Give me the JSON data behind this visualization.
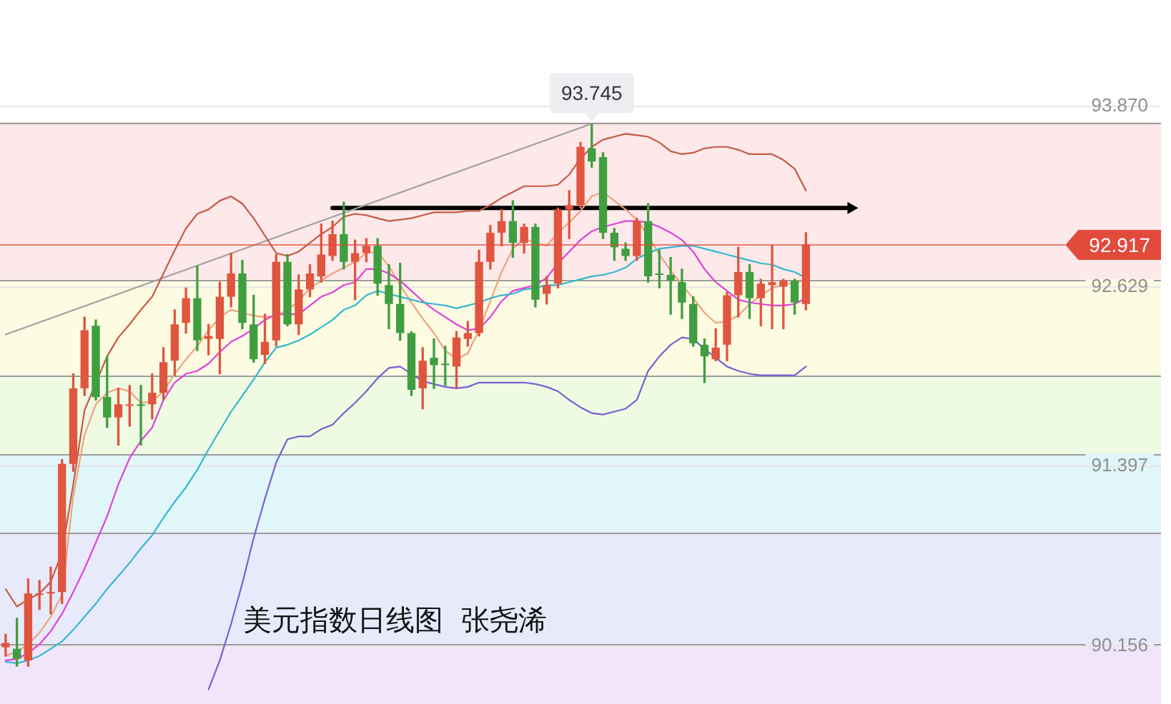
{
  "chart_data": {
    "type": "candlestick",
    "title": "美元指数日线图  张尧浠",
    "categories": [
      null,
      null,
      null,
      null,
      null,
      null,
      null,
      null,
      null,
      null,
      null,
      null,
      null,
      null,
      null,
      null,
      null,
      null,
      null,
      null,
      null,
      null,
      null,
      null,
      null,
      null,
      null,
      null,
      null,
      null,
      null,
      null,
      null,
      null,
      null,
      null,
      null,
      null,
      null,
      null,
      null,
      null,
      null,
      null,
      null,
      null,
      null,
      null,
      null,
      null,
      null,
      null,
      null,
      null,
      null,
      null,
      null,
      null,
      null,
      null,
      null,
      null,
      null,
      null,
      null,
      null,
      null,
      null,
      null,
      null,
      null,
      null,
      null,
      null,
      null,
      null,
      null,
      null,
      null,
      null,
      null,
      null,
      null,
      null,
      null,
      null,
      null,
      null,
      null,
      null,
      null,
      null,
      null,
      null,
      null,
      null,
      null,
      null,
      null,
      null,
      null,
      null,
      null
    ],
    "ohlc": [
      [
        90.15,
        90.24,
        90.09,
        90.18
      ],
      [
        90.14,
        90.35,
        90.02,
        90.07
      ],
      [
        90.06,
        90.62,
        90.02,
        90.52
      ],
      [
        90.51,
        90.61,
        90.41,
        90.52
      ],
      [
        90.52,
        90.7,
        90.38,
        90.53
      ],
      [
        90.53,
        91.44,
        90.45,
        91.41
      ],
      [
        91.41,
        92.03,
        91.36,
        91.93
      ],
      [
        91.93,
        92.42,
        91.88,
        92.33
      ],
      [
        92.36,
        92.4,
        91.85,
        91.87
      ],
      [
        91.87,
        92.15,
        91.66,
        91.73
      ],
      [
        91.73,
        91.93,
        91.54,
        91.82
      ],
      [
        91.81,
        91.95,
        91.67,
        91.82
      ],
      [
        91.82,
        91.95,
        91.54,
        91.81
      ],
      [
        91.82,
        92.03,
        91.72,
        91.9
      ],
      [
        91.9,
        92.21,
        91.85,
        92.11
      ],
      [
        92.12,
        92.47,
        92.02,
        92.37
      ],
      [
        92.38,
        92.62,
        92.31,
        92.55
      ],
      [
        92.55,
        92.77,
        92.19,
        92.26
      ],
      [
        92.27,
        92.37,
        92.16,
        92.29
      ],
      [
        92.27,
        92.66,
        92.03,
        92.56
      ],
      [
        92.56,
        92.86,
        92.49,
        92.72
      ],
      [
        92.72,
        92.81,
        92.34,
        92.38
      ],
      [
        92.37,
        92.57,
        92.11,
        92.13
      ],
      [
        92.16,
        92.44,
        92.1,
        92.25
      ],
      [
        92.26,
        92.85,
        92.22,
        92.8
      ],
      [
        92.8,
        92.85,
        92.36,
        92.37
      ],
      [
        92.37,
        92.71,
        92.3,
        92.61
      ],
      [
        92.61,
        92.78,
        92.56,
        92.72
      ],
      [
        92.7,
        93.06,
        92.66,
        92.85
      ],
      [
        92.84,
        93.08,
        92.81,
        92.99
      ],
      [
        92.99,
        93.21,
        92.75,
        92.8
      ],
      [
        92.8,
        92.95,
        92.54,
        92.86
      ],
      [
        92.86,
        92.96,
        92.8,
        92.91
      ],
      [
        92.91,
        92.96,
        92.57,
        92.65
      ],
      [
        92.64,
        92.78,
        92.34,
        92.51
      ],
      [
        92.51,
        92.79,
        92.26,
        92.31
      ],
      [
        92.31,
        92.32,
        91.88,
        91.92
      ],
      [
        91.93,
        92.21,
        91.79,
        92.12
      ],
      [
        92.14,
        92.27,
        91.93,
        92.09
      ],
      [
        92.1,
        92.22,
        91.95,
        92.09
      ],
      [
        92.08,
        92.32,
        91.93,
        92.28
      ],
      [
        92.27,
        92.39,
        92.22,
        92.31
      ],
      [
        92.31,
        92.88,
        92.29,
        92.8
      ],
      [
        92.8,
        93.05,
        92.75,
        93.0
      ],
      [
        93.0,
        93.16,
        92.91,
        93.08
      ],
      [
        93.08,
        93.22,
        92.83,
        92.93
      ],
      [
        92.93,
        93.06,
        92.86,
        93.04
      ],
      [
        93.04,
        93.06,
        92.49,
        92.54
      ],
      [
        92.58,
        92.7,
        92.51,
        92.64
      ],
      [
        92.65,
        93.17,
        92.62,
        93.16
      ],
      [
        93.16,
        93.29,
        92.96,
        93.19
      ],
      [
        93.19,
        93.62,
        93.17,
        93.59
      ],
      [
        93.58,
        93.745,
        93.45,
        93.49
      ],
      [
        93.52,
        93.55,
        92.96,
        93.0
      ],
      [
        93.0,
        93.03,
        92.81,
        92.9
      ],
      [
        92.89,
        92.93,
        92.81,
        92.84
      ],
      [
        92.84,
        93.1,
        92.81,
        93.08
      ],
      [
        93.08,
        93.2,
        92.66,
        92.7
      ],
      [
        92.72,
        92.88,
        92.62,
        92.71
      ],
      [
        92.71,
        92.83,
        92.44,
        92.67
      ],
      [
        92.66,
        92.75,
        92.41,
        92.52
      ],
      [
        92.51,
        92.56,
        92.22,
        92.24
      ],
      [
        92.23,
        92.27,
        91.97,
        92.15
      ],
      [
        92.13,
        92.34,
        92.12,
        92.21
      ],
      [
        92.23,
        92.59,
        92.12,
        92.57
      ],
      [
        92.57,
        92.9,
        92.42,
        92.73
      ],
      [
        92.73,
        92.78,
        92.41,
        92.55
      ],
      [
        92.55,
        92.68,
        92.36,
        92.65
      ],
      [
        92.64,
        92.91,
        92.34,
        92.66
      ],
      [
        92.63,
        92.68,
        92.34,
        92.67
      ],
      [
        92.67,
        92.68,
        92.44,
        92.52
      ],
      [
        92.51,
        93.0,
        92.47,
        92.917
      ],
      null,
      null,
      null,
      null,
      null,
      null,
      null,
      null,
      null,
      null,
      null,
      null,
      null,
      null,
      null,
      null,
      null,
      null,
      null,
      null,
      null,
      null,
      null,
      null,
      null,
      null,
      null,
      null,
      null,
      null,
      null
    ],
    "colors": [
      "#e0553f",
      "#3f9e3f",
      "#e0553f",
      "#e0553f",
      "#e0553f",
      "#e0553f",
      "#e0553f",
      "#e0553f",
      "#3f9e3f",
      "#3f9e3f",
      "#e0553f",
      "#e0553f",
      "#3f9e3f",
      "#e0553f",
      "#e0553f",
      "#e0553f",
      "#e0553f",
      "#3f9e3f",
      "#e0553f",
      "#e0553f",
      "#e0553f",
      "#3f9e3f",
      "#3f9e3f",
      "#e0553f",
      "#e0553f",
      "#3f9e3f",
      "#e0553f",
      "#e0553f",
      "#e0553f",
      "#e0553f",
      "#3f9e3f",
      "#e0553f",
      "#e0553f",
      "#3f9e3f",
      "#3f9e3f",
      "#3f9e3f",
      "#3f9e3f",
      "#e0553f",
      "#3f9e3f",
      "#3f9e3f",
      "#e0553f",
      "#e0553f",
      "#e0553f",
      "#e0553f",
      "#e0553f",
      "#3f9e3f",
      "#e0553f",
      "#3f9e3f",
      "#e0553f",
      "#e0553f",
      "#e0553f",
      "#e0553f",
      "#3f9e3f",
      "#3f9e3f",
      "#3f9e3f",
      "#3f9e3f",
      "#e0553f",
      "#3f9e3f",
      "#3f9e3f",
      "#3f9e3f",
      "#3f9e3f",
      "#3f9e3f",
      "#3f9e3f",
      "#e0553f",
      "#e0553f",
      "#e0553f",
      "#3f9e3f",
      "#e0553f",
      "#e0553f",
      "#e0553f",
      "#3f9e3f",
      "#e0553f",
      null,
      null,
      null,
      null,
      null,
      null,
      null,
      null,
      null,
      null,
      null,
      null,
      null,
      null,
      null,
      null,
      null,
      null,
      null,
      null,
      null,
      null,
      null,
      null,
      null,
      null,
      null,
      null,
      null,
      null,
      null
    ],
    "series": [
      {
        "type": "line",
        "color": "#c65a45",
        "values": [
          90.55,
          90.43,
          90.48,
          90.52,
          90.6,
          90.8,
          91.27,
          91.78,
          null,
          92.15,
          92.28,
          92.37,
          92.47,
          92.56,
          92.72,
          92.88,
          93.03,
          93.13,
          93.16,
          93.22,
          93.25,
          93.2,
          93.1,
          92.98,
          92.86,
          92.84,
          92.87,
          92.93,
          92.99,
          93.04,
          93.11,
          93.13,
          93.12,
          93.1,
          93.08,
          93.09,
          93.1,
          93.12,
          93.14,
          93.14,
          93.14,
          93.15,
          93.15,
          93.19,
          93.24,
          93.28,
          93.32,
          93.32,
          93.32,
          93.33,
          93.4,
          93.51,
          93.59,
          93.64,
          93.66,
          93.68,
          93.67,
          93.66,
          93.62,
          93.56,
          93.54,
          93.55,
          93.58,
          93.59,
          93.59,
          93.57,
          93.54,
          93.54,
          93.54,
          93.5,
          93.44,
          93.29,
          null,
          null,
          null,
          null,
          null,
          null,
          null,
          null,
          null,
          null,
          null,
          null,
          null,
          null,
          null,
          null,
          null,
          null,
          null,
          null,
          null,
          null,
          null,
          null,
          null,
          null,
          null,
          null,
          null,
          null,
          null
        ]
      },
      {
        "type": "line",
        "color": "#7a5fd1",
        "values": [
          null,
          null,
          null,
          null,
          null,
          null,
          null,
          null,
          null,
          null,
          null,
          null,
          null,
          null,
          null,
          null,
          null,
          null,
          89.86,
          90.06,
          90.31,
          90.59,
          90.9,
          91.17,
          91.42,
          91.58,
          91.6,
          91.6,
          91.65,
          91.68,
          91.76,
          91.83,
          91.91,
          92.0,
          92.07,
          92.08,
          92.03,
          91.98,
          91.96,
          91.94,
          91.93,
          91.94,
          91.97,
          91.97,
          91.97,
          91.97,
          91.97,
          91.96,
          91.94,
          91.91,
          91.85,
          91.8,
          91.76,
          91.75,
          91.77,
          91.79,
          91.85,
          92.05,
          92.15,
          92.23,
          92.28,
          92.27,
          92.2,
          92.14,
          92.08,
          92.05,
          92.03,
          92.02,
          92.02,
          92.02,
          92.02,
          92.08,
          null,
          null,
          null,
          null,
          null,
          null,
          null,
          null,
          null,
          null,
          null,
          null,
          null,
          null,
          null,
          null,
          null,
          null,
          null,
          null,
          null,
          null,
          null,
          null,
          null,
          null,
          null,
          null,
          null,
          null,
          null
        ]
      },
      {
        "type": "line",
        "color": "#35b6cf",
        "values": [
          90.05,
          90.04,
          90.06,
          90.09,
          90.14,
          90.19,
          90.27,
          90.36,
          90.45,
          90.55,
          90.64,
          90.73,
          90.83,
          90.92,
          91.04,
          91.15,
          91.25,
          91.37,
          91.51,
          91.64,
          91.77,
          91.88,
          91.99,
          92.11,
          92.21,
          92.23,
          92.26,
          92.3,
          92.35,
          92.4,
          92.47,
          92.5,
          92.57,
          92.6,
          92.58,
          92.56,
          92.54,
          92.52,
          92.51,
          92.5,
          92.48,
          92.5,
          92.52,
          92.55,
          92.57,
          92.58,
          92.61,
          92.62,
          92.64,
          92.64,
          92.66,
          92.68,
          92.7,
          92.71,
          92.73,
          92.76,
          92.82,
          92.86,
          92.89,
          92.9,
          92.91,
          92.91,
          92.89,
          92.87,
          92.85,
          92.83,
          92.81,
          92.79,
          92.78,
          92.75,
          92.73,
          92.69,
          null,
          null,
          null,
          null,
          null,
          null,
          null,
          null,
          null,
          null,
          null,
          null,
          null,
          null,
          null,
          null,
          null,
          null,
          null,
          null,
          null,
          null,
          null,
          null,
          null,
          null,
          null,
          null,
          null,
          null,
          null
        ]
      },
      {
        "type": "line",
        "color": "#e040dc",
        "values": [
          90.06,
          90.07,
          90.11,
          90.17,
          90.26,
          90.38,
          90.53,
          90.69,
          90.87,
          91.05,
          91.27,
          91.45,
          91.57,
          91.66,
          91.85,
          91.97,
          92.03,
          92.05,
          92.1,
          92.18,
          92.25,
          92.29,
          92.34,
          92.4,
          92.44,
          92.44,
          92.44,
          92.5,
          92.56,
          92.59,
          92.64,
          92.66,
          92.75,
          92.75,
          92.72,
          92.67,
          92.6,
          92.53,
          92.47,
          92.42,
          92.37,
          92.33,
          92.34,
          92.42,
          92.53,
          92.6,
          92.62,
          92.64,
          92.69,
          92.79,
          92.87,
          92.95,
          93.01,
          93.04,
          93.06,
          93.08,
          93.08,
          93.07,
          93.04,
          93.0,
          92.95,
          92.87,
          92.75,
          92.66,
          92.6,
          92.54,
          92.52,
          92.51,
          92.5,
          92.5,
          92.51,
          92.55,
          null,
          null,
          null,
          null,
          null,
          null,
          null,
          null,
          null,
          null,
          null,
          null,
          null,
          null,
          null,
          null,
          null,
          null,
          null,
          null,
          null,
          null,
          null,
          null,
          null,
          null,
          null,
          null,
          null,
          null,
          null
        ]
      },
      {
        "type": "line",
        "color": "#f0a07e",
        "values": [
          90.09,
          90.12,
          90.17,
          90.25,
          90.36,
          90.51,
          91.19,
          91.61,
          91.82,
          91.9,
          91.93,
          91.91,
          91.83,
          91.84,
          91.91,
          92.03,
          92.13,
          92.22,
          92.33,
          92.42,
          92.47,
          92.45,
          92.43,
          92.42,
          92.43,
          92.47,
          92.53,
          92.62,
          92.67,
          92.72,
          92.76,
          92.8,
          92.86,
          92.87,
          92.77,
          92.64,
          92.52,
          92.41,
          92.31,
          92.19,
          92.13,
          92.17,
          92.33,
          92.53,
          92.73,
          92.89,
          92.96,
          92.93,
          92.91,
          93.0,
          93.07,
          93.15,
          93.25,
          93.28,
          93.22,
          93.16,
          93.09,
          92.98,
          92.85,
          92.74,
          92.64,
          92.55,
          92.45,
          92.38,
          92.39,
          92.43,
          92.51,
          92.57,
          92.62,
          92.64,
          92.66,
          92.67,
          null,
          null,
          null,
          null,
          null,
          null,
          null,
          null,
          null,
          null,
          null,
          null,
          null,
          null,
          null,
          null,
          null,
          null,
          null,
          null,
          null,
          null,
          null,
          null,
          null,
          null,
          null,
          null,
          null,
          null,
          null
        ]
      },
      {
        "type": "line",
        "color": "#a0a0a0",
        "values": [
          92.3,
          null,
          null,
          null,
          null,
          null,
          null,
          null,
          null,
          null,
          null,
          null,
          null,
          null,
          null,
          null,
          null,
          null,
          null,
          null,
          null,
          null,
          null,
          null,
          null,
          null,
          null,
          null,
          null,
          null,
          null,
          null,
          null,
          null,
          null,
          null,
          null,
          null,
          null,
          null,
          null,
          null,
          null,
          null,
          null,
          null,
          null,
          null,
          null,
          null,
          null,
          null,
          93.75,
          null,
          null,
          null,
          null,
          null,
          null,
          null,
          null,
          null,
          null,
          null,
          null,
          null,
          null,
          null,
          null,
          null,
          null,
          null,
          null,
          null,
          null,
          null,
          null,
          null,
          null,
          null,
          null,
          null,
          null,
          null,
          null,
          null,
          null,
          null,
          null,
          null,
          null,
          null,
          null,
          null,
          null,
          null,
          null,
          null,
          null,
          null,
          null,
          null,
          null
        ]
      },
      {
        "type": "line",
        "color": "#000000",
        "marker": "triangle",
        "values": [
          null,
          null,
          null,
          null,
          null,
          null,
          null,
          null,
          null,
          null,
          null,
          null,
          null,
          null,
          null,
          null,
          null,
          null,
          null,
          null,
          null,
          null,
          null,
          null,
          null,
          null,
          null,
          null,
          null,
          93.17,
          null,
          null,
          null,
          null,
          null,
          null,
          null,
          null,
          null,
          null,
          null,
          null,
          null,
          null,
          null,
          null,
          null,
          null,
          null,
          null,
          null,
          null,
          null,
          null,
          null,
          null,
          null,
          null,
          null,
          null,
          null,
          null,
          null,
          null,
          null,
          null,
          null,
          null,
          null,
          null,
          null,
          null,
          null,
          null,
          null,
          93.17,
          null,
          null,
          null,
          null,
          null,
          null,
          null,
          null,
          null,
          null,
          null,
          null,
          null,
          null,
          null,
          null,
          null,
          null,
          null,
          null,
          null,
          null,
          null,
          null,
          null,
          null,
          null
        ]
      }
    ],
    "marker": "none",
    "ylim": [
      89.76,
      94.6
    ],
    "yticks": [
      90.156,
      91.397,
      92.629,
      {
        "value": 93.87,
        "label": "93.870"
      }
    ],
    "tick_labels": "y",
    "grid": "y",
    "bands": [
      {
        "axis": "y",
        "from": 92.68,
        "to": 93.76,
        "color": "#fde9e9"
      },
      {
        "axis": "y",
        "from": 92.02,
        "to": 92.68,
        "color": "#fdfbe2"
      },
      {
        "axis": "y",
        "from": 91.48,
        "to": 92.02,
        "color": "#eefbe2"
      },
      {
        "axis": "y",
        "from": 90.94,
        "to": 91.48,
        "color": "#e0f6f9"
      },
      {
        "axis": "y",
        "from": 90.17,
        "to": 90.94,
        "color": "#e7eafb"
      },
      {
        "axis": "y",
        "from": 89.76,
        "to": 90.17,
        "color": "#f1e5fb"
      }
    ],
    "ref_lines": [
      {
        "axis": "y",
        "value": 92.917,
        "label": "92.917",
        "color": "#e24a3b"
      }
    ],
    "annotations": [
      {
        "text": "93.745",
        "y": 93.745
      }
    ]
  }
}
